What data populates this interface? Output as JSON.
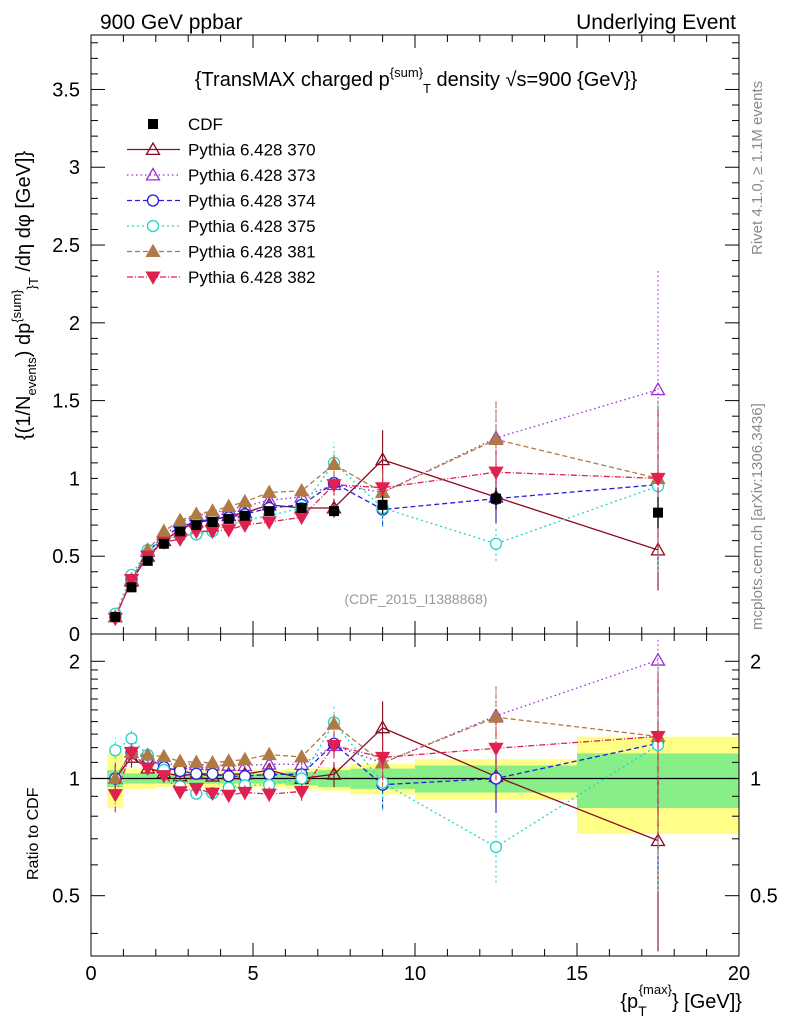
{
  "header": {
    "left": "900 GeV ppbar",
    "right": "Underlying Event"
  },
  "side_texts": {
    "rivet": "Rivet 4.1.0, ≥ 1.1M events",
    "mcplots": "mcplots.cern.ch [arXiv:1306.3436]"
  },
  "chart_data": {
    "type": "scatter",
    "title": "{TransMAX charged p^{sum}_T density √s=900 {GeV}}",
    "watermark": "(CDF_2015_I1388868)",
    "xlabel": "{p_T^{max}} [GeV]",
    "ylabel": "{(1/N_events) dp^{sum}_T /dη dφ [GeV]}",
    "ratio_ylabel": "Ratio to CDF",
    "xlim": [
      0,
      20
    ],
    "ylim": [
      0,
      3.85
    ],
    "ratio_ylim": [
      0.35,
      2.35
    ],
    "x_ticks": [
      "0",
      "5",
      "10",
      "15",
      "20"
    ],
    "y_ticks": [
      "0",
      "0.5",
      "1",
      "1.5",
      "2",
      "2.5",
      "3",
      "3.5"
    ],
    "ratio_ticks": [
      "0.5",
      "1",
      "2"
    ],
    "x": [
      0.75,
      1.25,
      1.75,
      2.25,
      2.75,
      3.25,
      3.75,
      4.25,
      4.75,
      5.5,
      6.5,
      7.5,
      9.0,
      12.5,
      17.5
    ],
    "reference": {
      "name": "CDF",
      "color": "#000000",
      "values": [
        0.11,
        0.3,
        0.47,
        0.58,
        0.66,
        0.7,
        0.72,
        0.74,
        0.76,
        0.79,
        0.81,
        0.79,
        0.83,
        0.87,
        0.78
      ],
      "errors": [
        0.01,
        0.02,
        0.02,
        0.02,
        0.02,
        0.02,
        0.02,
        0.02,
        0.02,
        0.02,
        0.03,
        0.04,
        0.06,
        0.07,
        0.1
      ]
    },
    "ratio_bands": {
      "edges": [
        0.5,
        1.0,
        1.5,
        2.0,
        2.5,
        3.0,
        3.5,
        4.0,
        4.5,
        5.0,
        6.0,
        7.0,
        8.0,
        10.0,
        15.0,
        20.0
      ],
      "stat": [
        0.05,
        0.03,
        0.03,
        0.03,
        0.03,
        0.03,
        0.03,
        0.03,
        0.03,
        0.03,
        0.04,
        0.05,
        0.06,
        0.08,
        0.16
      ],
      "total": [
        0.16,
        0.06,
        0.06,
        0.05,
        0.05,
        0.05,
        0.05,
        0.05,
        0.05,
        0.05,
        0.06,
        0.07,
        0.09,
        0.12,
        0.28
      ]
    },
    "series": [
      {
        "name": "Pythia 6.428 370",
        "color": "#8b0a1e",
        "dash": "",
        "marker": "tri-up-open",
        "values": [
          0.11,
          0.34,
          0.5,
          0.6,
          0.67,
          0.72,
          0.73,
          0.76,
          0.78,
          0.83,
          0.81,
          0.81,
          1.12,
          0.88,
          0.54
        ],
        "errors": [
          0.01,
          0.02,
          0.02,
          0.02,
          0.02,
          0.02,
          0.02,
          0.02,
          0.03,
          0.03,
          0.04,
          0.06,
          0.19,
          0.15,
          0.26
        ]
      },
      {
        "name": "Pythia 6.428 373",
        "color": "#9a2bd6",
        "dash": "1.5,3",
        "marker": "tri-up-open",
        "values": [
          0.11,
          0.35,
          0.53,
          0.63,
          0.72,
          0.76,
          0.78,
          0.8,
          0.82,
          0.86,
          0.88,
          0.96,
          0.91,
          1.26,
          1.57
        ],
        "errors": [
          0.01,
          0.02,
          0.02,
          0.02,
          0.02,
          0.02,
          0.02,
          0.02,
          0.03,
          0.03,
          0.04,
          0.07,
          0.12,
          0.24,
          0.78
        ]
      },
      {
        "name": "Pythia 6.428 374",
        "color": "#2020d8",
        "dash": "5,3",
        "marker": "circle-open",
        "values": [
          0.11,
          0.35,
          0.53,
          0.62,
          0.69,
          0.72,
          0.74,
          0.75,
          0.77,
          0.81,
          0.83,
          0.97,
          0.8,
          0.87,
          0.96
        ],
        "errors": [
          0.01,
          0.02,
          0.02,
          0.02,
          0.02,
          0.02,
          0.02,
          0.02,
          0.03,
          0.03,
          0.04,
          0.07,
          0.11,
          0.16,
          0.5
        ]
      },
      {
        "name": "Pythia 6.428 375",
        "color": "#1fd6c8",
        "dash": "2,3",
        "marker": "circle-open",
        "values": [
          0.13,
          0.38,
          0.54,
          0.61,
          0.63,
          0.64,
          0.66,
          0.7,
          0.73,
          0.76,
          0.81,
          1.1,
          0.81,
          0.58,
          0.95
        ],
        "errors": [
          0.01,
          0.02,
          0.02,
          0.02,
          0.02,
          0.02,
          0.02,
          0.02,
          0.03,
          0.03,
          0.04,
          0.13,
          0.12,
          0.11,
          0.55
        ]
      },
      {
        "name": "Pythia 6.428 381",
        "color": "#b07a45",
        "dash": "5,3",
        "marker": "tri-up-filled",
        "values": [
          0.11,
          0.35,
          0.54,
          0.66,
          0.73,
          0.77,
          0.79,
          0.82,
          0.85,
          0.91,
          0.92,
          1.09,
          0.91,
          1.25,
          1.0
        ],
        "errors": [
          0.01,
          0.02,
          0.02,
          0.02,
          0.02,
          0.02,
          0.02,
          0.02,
          0.03,
          0.03,
          0.04,
          0.07,
          0.12,
          0.25,
          0.5
        ]
      },
      {
        "name": "Pythia 6.428 382",
        "color": "#e0204e",
        "dash": "6,2,1,2",
        "marker": "tri-down-filled",
        "values": [
          0.1,
          0.35,
          0.5,
          0.59,
          0.61,
          0.66,
          0.66,
          0.67,
          0.7,
          0.72,
          0.75,
          0.96,
          0.94,
          1.04,
          1.0
        ],
        "errors": [
          0.01,
          0.02,
          0.02,
          0.02,
          0.02,
          0.02,
          0.02,
          0.02,
          0.03,
          0.03,
          0.04,
          0.07,
          0.12,
          0.18,
          0.45
        ]
      }
    ]
  }
}
